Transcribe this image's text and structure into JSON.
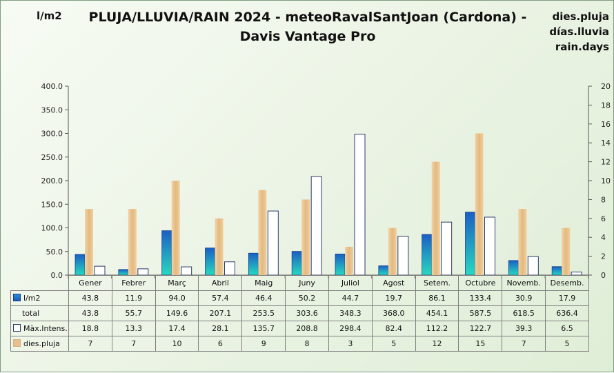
{
  "header": {
    "title": "PLUJA/LLUVIA/RAIN 2024 - meteoRavalSantJoan (Cardona) - Davis Vantage Pro",
    "unit_left": "l/m2",
    "unit_right_lines": [
      "dies.pluja",
      "días.lluvia",
      "rain.days"
    ]
  },
  "colors": {
    "rain_bar": "#1b64c4",
    "rain_bar_bottom": "#28d4c0",
    "max_intensity_bar": "#ffffff",
    "max_intensity_border": "#2c3a6e",
    "rain_days_bar": "#e6c08c"
  },
  "chart_data": {
    "type": "bar",
    "categories": [
      "Gener",
      "Febrer",
      "Març",
      "Abril",
      "Maig",
      "Juny",
      "Juliol",
      "Agost",
      "Setem.",
      "Octubre",
      "Novemb.",
      "Desemb."
    ],
    "series": [
      {
        "name": "l/m2",
        "axis": "left",
        "values": [
          43.8,
          11.9,
          94.0,
          57.4,
          46.4,
          50.2,
          44.7,
          19.7,
          86.1,
          133.4,
          30.9,
          17.9
        ]
      },
      {
        "name": "dies.pluja",
        "axis": "right",
        "values": [
          7,
          7,
          10,
          6,
          9,
          8,
          3,
          5,
          12,
          15,
          7,
          5
        ]
      },
      {
        "name": "Màx.Intens.",
        "axis": "left",
        "values": [
          18.8,
          13.3,
          17.4,
          28.1,
          135.7,
          208.8,
          298.4,
          82.4,
          112.2,
          122.7,
          39.3,
          6.5
        ]
      }
    ],
    "table_rows": [
      {
        "label": "l/m2",
        "key": "blue",
        "values": [
          "43.8",
          "11.9",
          "94.0",
          "57.4",
          "46.4",
          "50.2",
          "44.7",
          "19.7",
          "86.1",
          "133.4",
          "30.9",
          "17.9"
        ]
      },
      {
        "label": "total",
        "key": "none",
        "values": [
          "43.8",
          "55.7",
          "149.6",
          "207.1",
          "253.5",
          "303.6",
          "348.3",
          "368.0",
          "454.1",
          "587.5",
          "618.5",
          "636.4"
        ]
      },
      {
        "label": "Màx.Intens.",
        "key": "white",
        "values": [
          "18.8",
          "13.3",
          "17.4",
          "28.1",
          "135.7",
          "208.8",
          "298.4",
          "82.4",
          "112.2",
          "122.7",
          "39.3",
          "6.5"
        ]
      },
      {
        "label": "dies.pluja",
        "key": "tan",
        "values": [
          "7",
          "7",
          "10",
          "6",
          "9",
          "8",
          "3",
          "5",
          "12",
          "15",
          "7",
          "5"
        ]
      }
    ],
    "y_left": {
      "min": 0,
      "max": 400,
      "step": 50,
      "ticks": [
        "0.0",
        "50.0",
        "100.0",
        "150.0",
        "200.0",
        "250.0",
        "300.0",
        "350.0",
        "400.0"
      ]
    },
    "y_right": {
      "min": 0,
      "max": 20,
      "step": 2,
      "ticks": [
        "0",
        "2",
        "4",
        "6",
        "8",
        "10",
        "12",
        "14",
        "16",
        "18",
        "20"
      ]
    },
    "grid": false,
    "legend": "data-table-below"
  }
}
